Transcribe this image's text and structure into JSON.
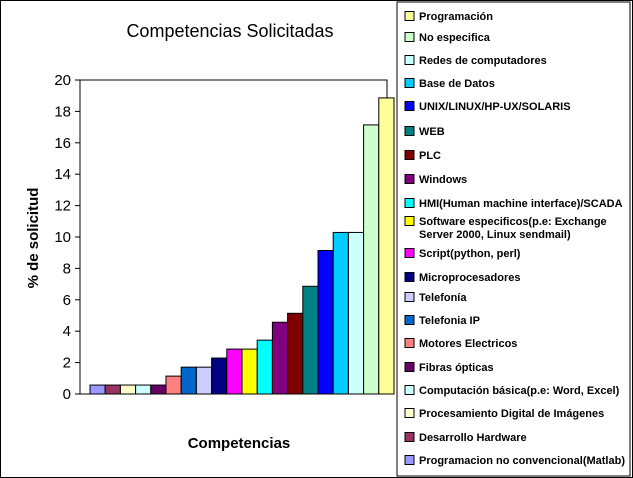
{
  "chart_data": {
    "type": "bar",
    "title": "Competencias Solicitadas",
    "xlabel": "Competencias",
    "ylabel": "% de solicitud",
    "ylim": [
      0,
      20
    ],
    "yticks": [
      0,
      2,
      4,
      6,
      8,
      10,
      12,
      14,
      16,
      18,
      20
    ],
    "grid": false,
    "legend_position": "right",
    "plot_background": "#ffffff",
    "series": [
      {
        "name": "Programacion no convencional(Matlab)",
        "value": 0.57,
        "color": "#9999FF"
      },
      {
        "name": "Desarrollo Hardware",
        "value": 0.57,
        "color": "#993366"
      },
      {
        "name": "Procesamiento Digital de Imágenes",
        "value": 0.57,
        "color": "#FFFFCC"
      },
      {
        "name": "Computación básica(p.e: Word, Excel)",
        "value": 0.57,
        "color": "#CCFFFF"
      },
      {
        "name": "Fibras ópticas",
        "value": 0.57,
        "color": "#660066"
      },
      {
        "name": "Motores Electricos",
        "value": 1.14,
        "color": "#FF8080"
      },
      {
        "name": "Telefonia IP",
        "value": 1.71,
        "color": "#0066CC"
      },
      {
        "name": "Telefonía",
        "value": 1.71,
        "color": "#CCCCFF"
      },
      {
        "name": "Microprocesadores",
        "value": 2.29,
        "color": "#000080"
      },
      {
        "name": "Script(python, perl)",
        "value": 2.86,
        "color": "#FF00FF"
      },
      {
        "name": "Software especificos(p.e: Exchange\nServer 2000, Linux sendmail)",
        "value": 2.86,
        "color": "#FFFF00"
      },
      {
        "name": "HMI(Human machine interface)/SCADA",
        "value": 3.43,
        "color": "#00FFFF"
      },
      {
        "name": "Windows",
        "value": 4.57,
        "color": "#800080"
      },
      {
        "name": "PLC",
        "value": 5.14,
        "color": "#800000"
      },
      {
        "name": "WEB",
        "value": 6.86,
        "color": "#008080"
      },
      {
        "name": "UNIX/LINUX/HP-UX/SOLARIS",
        "value": 9.14,
        "color": "#0000FF"
      },
      {
        "name": "Base de Datos",
        "value": 10.29,
        "color": "#00CCFF"
      },
      {
        "name": "Redes de computadores",
        "value": 10.29,
        "color": "#CCFFFF"
      },
      {
        "name": "No especifica",
        "value": 17.14,
        "color": "#CCFFCC"
      },
      {
        "name": "Programación",
        "value": 18.86,
        "color": "#FFFF99"
      }
    ]
  }
}
